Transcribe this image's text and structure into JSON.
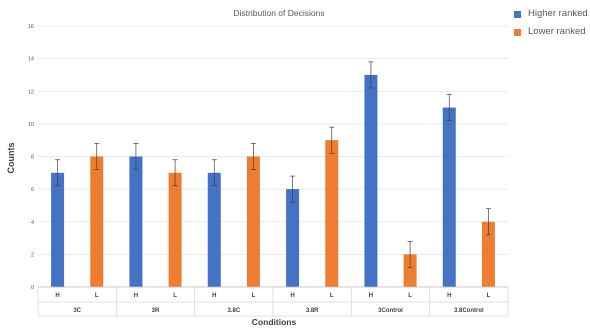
{
  "chart_data": {
    "type": "bar",
    "title": "Distribution of Decisions",
    "xlabel": "Conditions",
    "ylabel": "Counts",
    "ylim": [
      0,
      16
    ],
    "yticks": [
      0,
      2,
      4,
      6,
      8,
      10,
      12,
      14,
      16
    ],
    "grid": true,
    "legend_position": "top-right",
    "groups": [
      "3C",
      "3R",
      "3.8C",
      "3.8R",
      "3Control",
      "3.8Control"
    ],
    "subcategories": [
      "H",
      "L"
    ],
    "series": [
      {
        "name": "Higher ranked",
        "color": "#4472C4",
        "values": [
          7,
          8,
          7,
          6,
          13,
          11
        ],
        "errors": [
          0.8,
          0.8,
          0.8,
          0.8,
          0.8,
          0.8
        ]
      },
      {
        "name": "Lower ranked",
        "color": "#ED7D31",
        "values": [
          8,
          7,
          8,
          9,
          2,
          4
        ],
        "errors": [
          0.8,
          0.8,
          0.8,
          0.8,
          0.8,
          0.8
        ]
      }
    ]
  }
}
